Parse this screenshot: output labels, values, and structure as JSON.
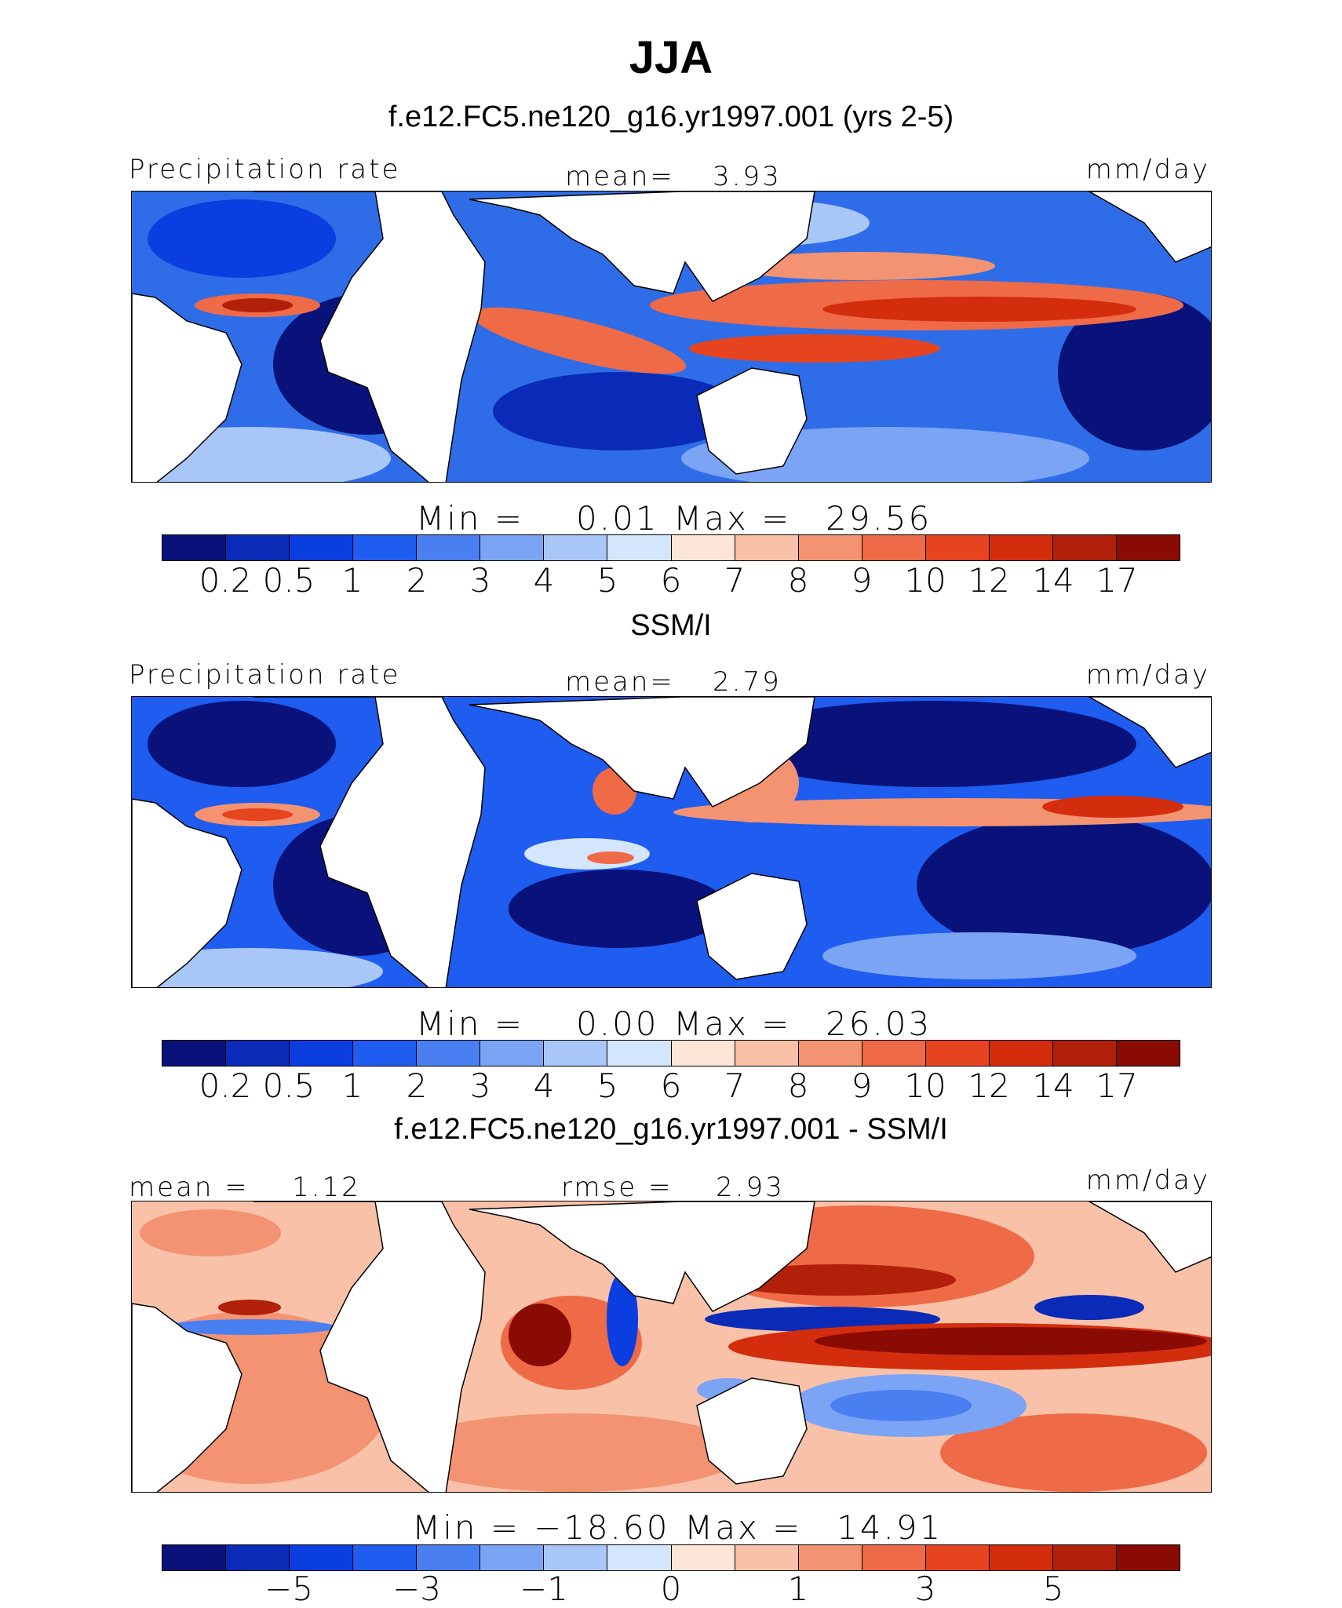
{
  "title": "JJA",
  "palette": {
    "seq": [
      "#08127a",
      "#0a2bb8",
      "#0b3ee0",
      "#1f5cf0",
      "#4a7ff2",
      "#7ba4f5",
      "#a9c6f8",
      "#d4e6fc",
      "#fde5d7",
      "#f9c2a8",
      "#f39371",
      "#ef6a47",
      "#e6441f",
      "#d42d0e",
      "#b0200a",
      "#8a0a04"
    ],
    "diff": [
      "#08127a",
      "#0a2bb8",
      "#0b3ee0",
      "#1f5cf0",
      "#4a7ff2",
      "#7ba4f5",
      "#a9c6f8",
      "#d4e6fc",
      "#fde5d7",
      "#f9c2a8",
      "#f39371",
      "#ef6a47",
      "#e6441f",
      "#d42d0e",
      "#b0200a",
      "#8a0a04"
    ]
  },
  "panels": [
    {
      "subtitle": "f.e12.FC5.ne120_g16.yr1997.001 (yrs 2-5)",
      "left_label": "Precipitation rate",
      "center_label": "mean=",
      "center_value": "3.93",
      "right_label": "mm/day",
      "min_label": "Min  =",
      "min_value": "0.01",
      "max_label": "Max  =",
      "max_value": "29.56",
      "ticks": [
        "0.2",
        "0.5",
        "1",
        "2",
        "3",
        "4",
        "5",
        "6",
        "7",
        "8",
        "9",
        "10",
        "12",
        "14",
        "17"
      ]
    },
    {
      "subtitle": "SSM/I",
      "left_label": "Precipitation rate",
      "center_label": "mean=",
      "center_value": "2.79",
      "right_label": "mm/day",
      "min_label": "Min  =",
      "min_value": "0.00",
      "max_label": "Max  =",
      "max_value": "26.03",
      "ticks": [
        "0.2",
        "0.5",
        "1",
        "2",
        "3",
        "4",
        "5",
        "6",
        "7",
        "8",
        "9",
        "10",
        "12",
        "14",
        "17"
      ]
    },
    {
      "subtitle": "f.e12.FC5.ne120_g16.yr1997.001 - SSM/I",
      "left_label": "mean  =",
      "left_value": "1.12",
      "center_label": "rmse  =",
      "center_value": "2.93",
      "right_label": "mm/day",
      "min_label": "Min  =",
      "min_value": "−18.60",
      "max_label": "Max  =",
      "max_value": "14.91",
      "ticks": [
        "−5",
        "−3",
        "−1",
        "0",
        "1",
        "3",
        "5"
      ]
    }
  ]
}
